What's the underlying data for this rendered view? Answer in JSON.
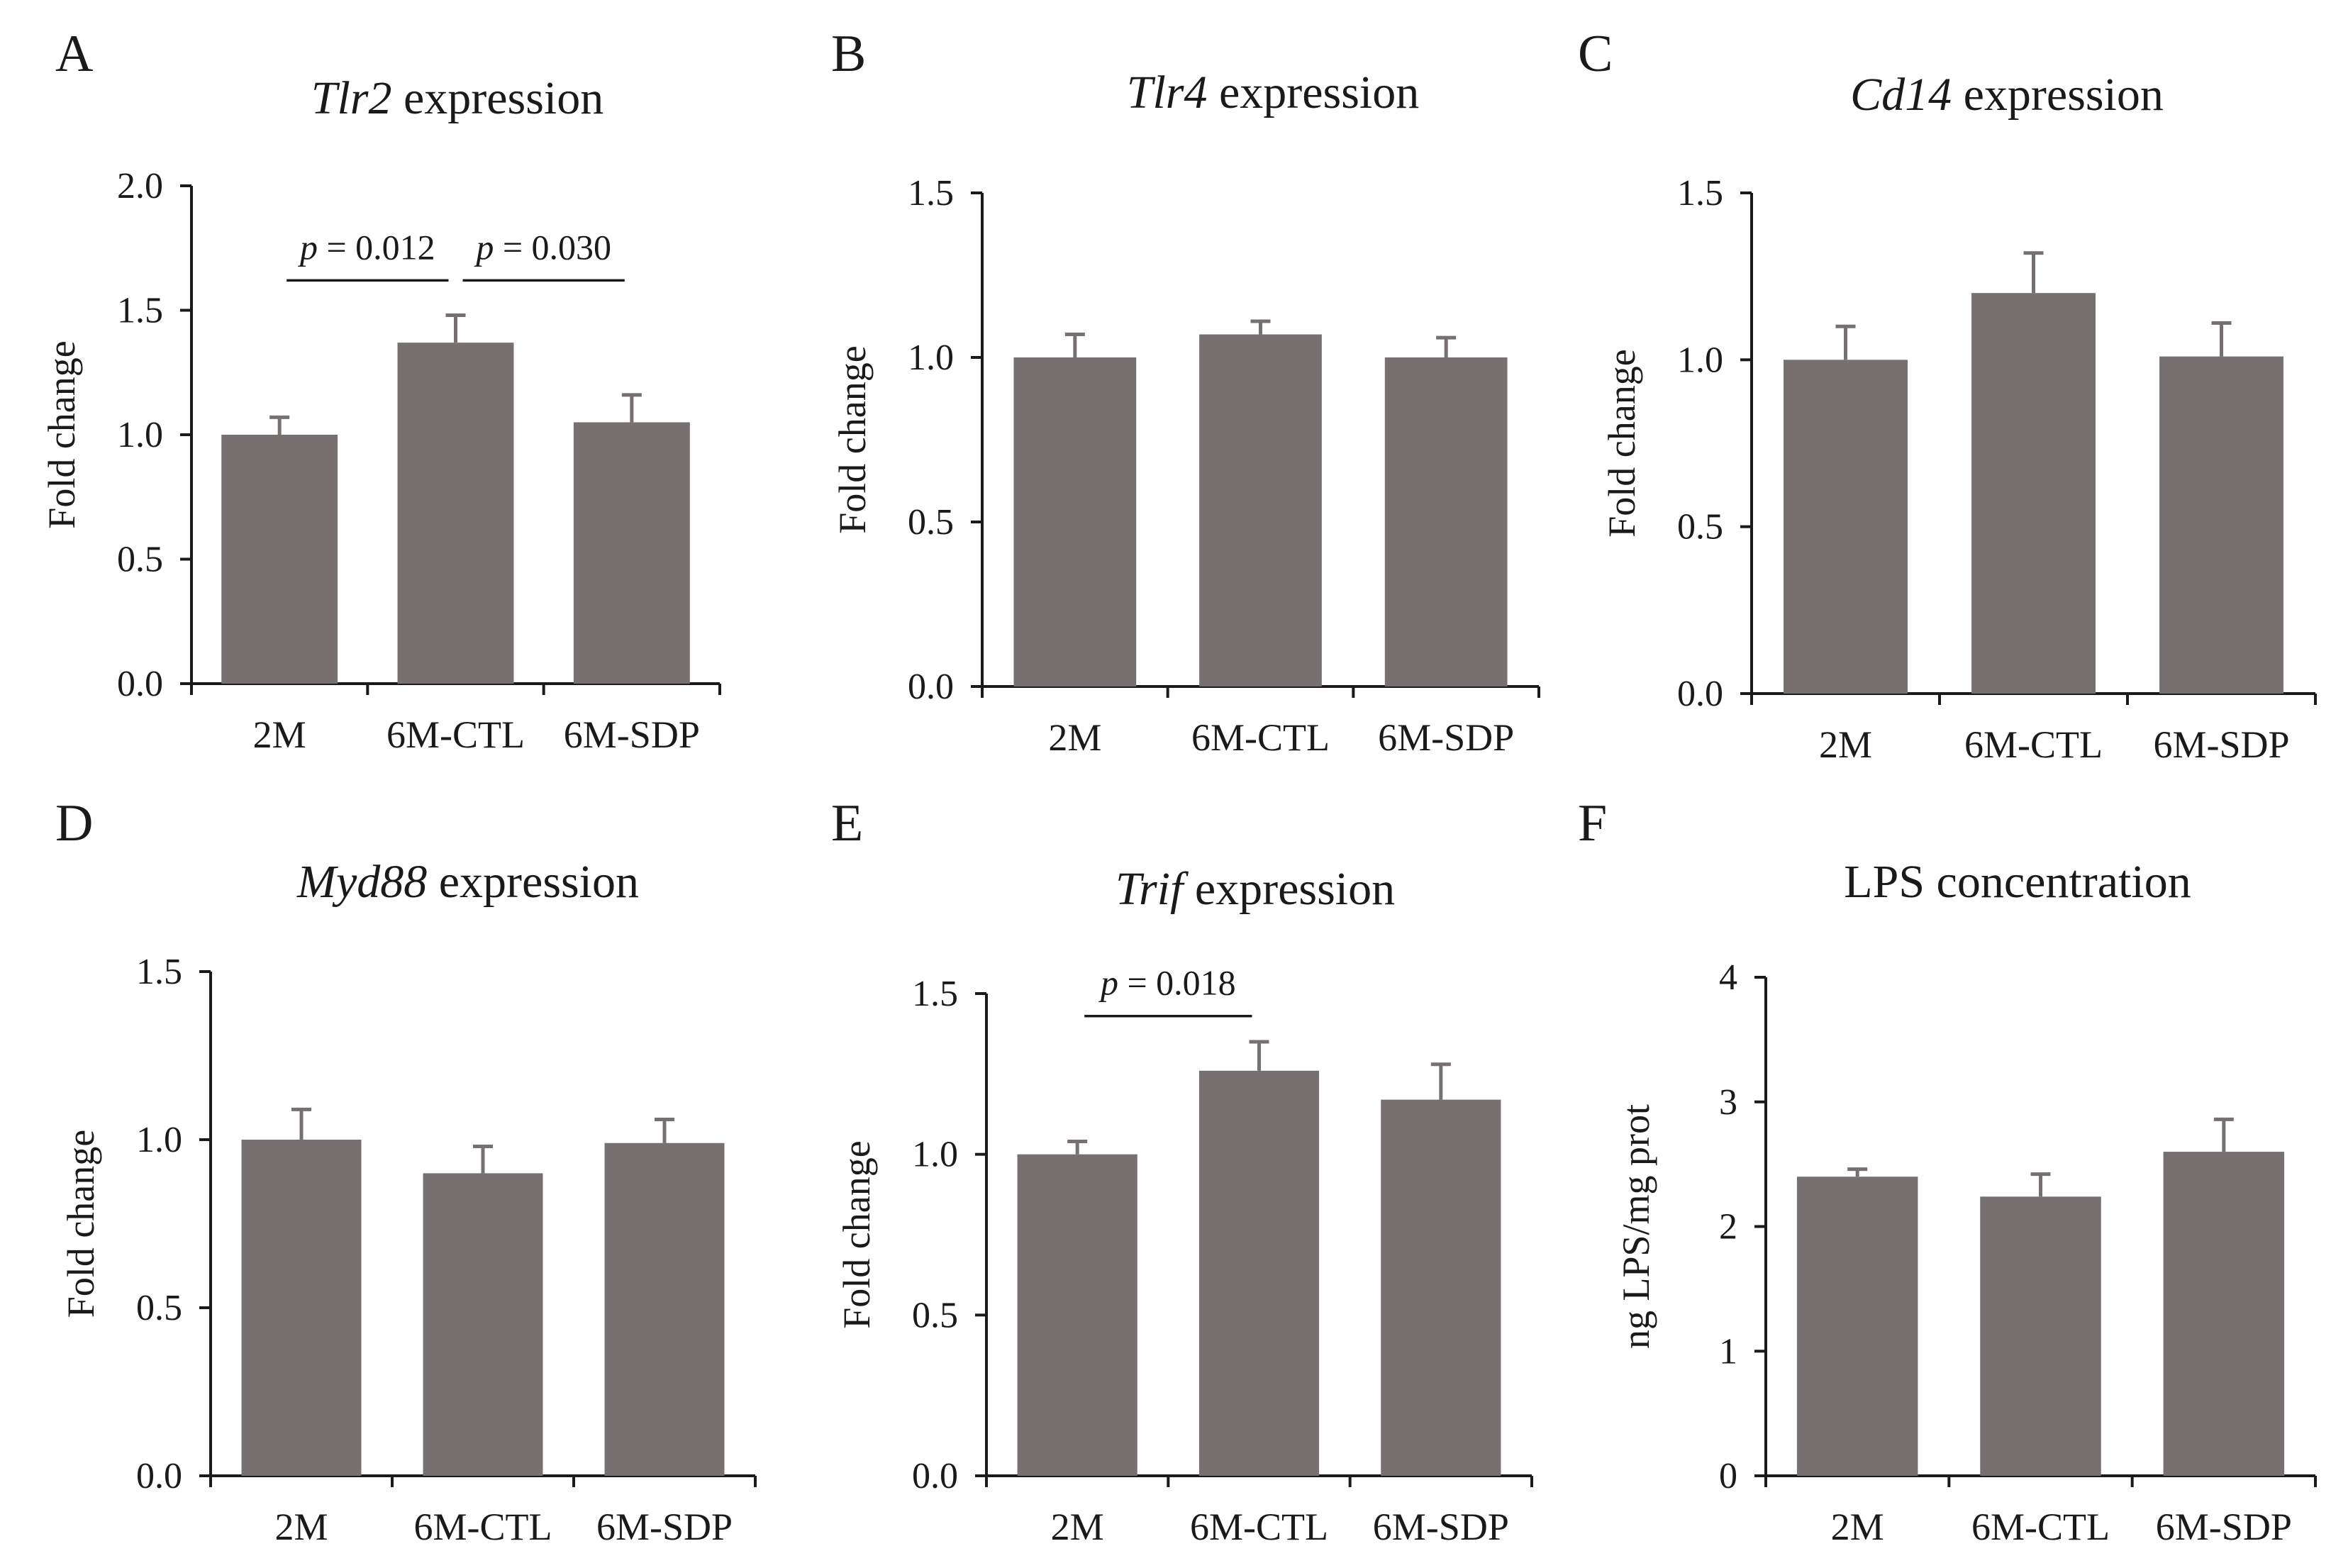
{
  "chart_data": [
    {
      "panel": "A",
      "type": "bar",
      "title_italic": "Tlr2",
      "title_rest": " expression",
      "ylabel": "Fold change",
      "categories": [
        "2M",
        "6M-CTL",
        "6M-SDP"
      ],
      "values": [
        1.0,
        1.37,
        1.05
      ],
      "errors": [
        0.07,
        0.11,
        0.11
      ],
      "ylim": [
        0,
        2.0
      ],
      "yticks": [
        0,
        0.5,
        1.0,
        1.5,
        2.0
      ],
      "ytick_labels": [
        "0.0",
        "0.5",
        "1.0",
        "1.5",
        "2.0"
      ],
      "annotations": [
        {
          "from": 0,
          "to": 1,
          "y": 1.62,
          "p_label": "p",
          "value_label": " = 0.012"
        },
        {
          "from": 1,
          "to": 2,
          "y": 1.62,
          "p_label": "p",
          "value_label": " = 0.030"
        }
      ]
    },
    {
      "panel": "B",
      "type": "bar",
      "title_italic": "Tlr4",
      "title_rest": " expression",
      "ylabel": "Fold change",
      "categories": [
        "2M",
        "6M-CTL",
        "6M-SDP"
      ],
      "values": [
        1.0,
        1.07,
        1.0
      ],
      "errors": [
        0.07,
        0.04,
        0.06
      ],
      "ylim": [
        0,
        1.5
      ],
      "yticks": [
        0,
        0.5,
        1.0,
        1.5
      ],
      "ytick_labels": [
        "0.0",
        "0.5",
        "1.0",
        "1.5"
      ],
      "annotations": []
    },
    {
      "panel": "C",
      "type": "bar",
      "title_italic": "Cd14",
      "title_rest": " expression",
      "ylabel": "Fold change",
      "categories": [
        "2M",
        "6M-CTL",
        "6M-SDP"
      ],
      "values": [
        1.0,
        1.2,
        1.01
      ],
      "errors": [
        0.1,
        0.12,
        0.1
      ],
      "ylim": [
        0,
        1.5
      ],
      "yticks": [
        0,
        0.5,
        1.0,
        1.5
      ],
      "ytick_labels": [
        "0.0",
        "0.5",
        "1.0",
        "1.5"
      ],
      "annotations": []
    },
    {
      "panel": "D",
      "type": "bar",
      "title_italic": "Myd88",
      "title_rest": " expression",
      "ylabel": "Fold change",
      "categories": [
        "2M",
        "6M-CTL",
        "6M-SDP"
      ],
      "values": [
        1.0,
        0.9,
        0.99
      ],
      "errors": [
        0.09,
        0.08,
        0.07
      ],
      "ylim": [
        0,
        1.5
      ],
      "yticks": [
        0,
        0.5,
        1.0,
        1.5
      ],
      "ytick_labels": [
        "0.0",
        "0.5",
        "1.0",
        "1.5"
      ],
      "annotations": []
    },
    {
      "panel": "E",
      "type": "bar",
      "title_italic": "Trif",
      "title_rest": " expression",
      "ylabel": "Fold change",
      "categories": [
        "2M",
        "6M-CTL",
        "6M-SDP"
      ],
      "values": [
        1.0,
        1.26,
        1.17
      ],
      "errors": [
        0.04,
        0.09,
        0.11
      ],
      "ylim": [
        0,
        1.5
      ],
      "yticks": [
        0,
        0.5,
        1.0,
        1.5
      ],
      "ytick_labels": [
        "0.0",
        "0.5",
        "1.0",
        "1.5"
      ],
      "annotations": [
        {
          "from": 0,
          "to": 1,
          "y": 1.43,
          "p_label": "p",
          "value_label": " = 0.018"
        }
      ]
    },
    {
      "panel": "F",
      "type": "bar",
      "title_italic": "",
      "title_rest": "LPS concentration",
      "ylabel": "ng LPS/mg prot",
      "categories": [
        "2M",
        "6M-CTL",
        "6M-SDP"
      ],
      "values": [
        2.4,
        2.24,
        2.6
      ],
      "errors": [
        0.06,
        0.18,
        0.26
      ],
      "ylim": [
        0,
        4
      ],
      "yticks": [
        0,
        1,
        2,
        3,
        4
      ],
      "ytick_labels": [
        "0",
        "1",
        "2",
        "3",
        "4"
      ],
      "annotations": []
    }
  ]
}
